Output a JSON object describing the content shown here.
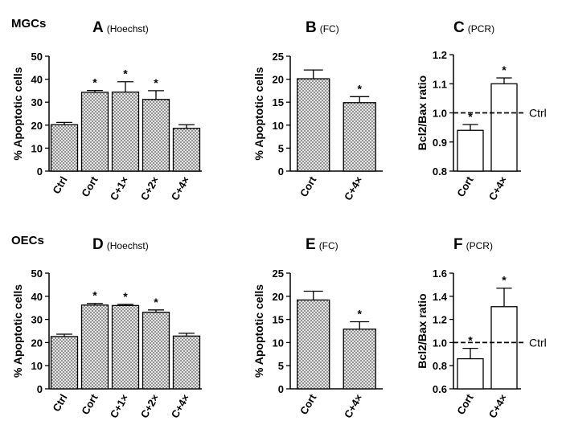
{
  "figure": {
    "rows": [
      {
        "label": "MGCs"
      },
      {
        "label": "OECs"
      }
    ]
  },
  "chart_data": [
    {
      "id": "A",
      "type": "bar",
      "row": 0,
      "letter": "A",
      "method": "(Hoechst)",
      "ylabel": "% Apoptotic cells",
      "ylim": [
        0,
        50
      ],
      "yticks": [
        0,
        10,
        20,
        30,
        40,
        50
      ],
      "categories": [
        "Ctrl",
        "Cort",
        "C+1×",
        "C+2×",
        "C+4×"
      ],
      "values": [
        20.2,
        34.3,
        34.4,
        31.2,
        18.6
      ],
      "errors": [
        1.0,
        0.8,
        4.5,
        3.8,
        1.6
      ],
      "significant": [
        false,
        true,
        true,
        true,
        false
      ],
      "fill": "hatched"
    },
    {
      "id": "B",
      "type": "bar",
      "row": 0,
      "letter": "B",
      "method": "(FC)",
      "ylabel": "% Apoptotic cells",
      "ylim": [
        0,
        25
      ],
      "yticks": [
        0,
        5,
        10,
        15,
        20,
        25
      ],
      "categories": [
        "Cort",
        "C+4×"
      ],
      "values": [
        20.1,
        14.9
      ],
      "errors": [
        1.9,
        1.3
      ],
      "significant": [
        false,
        true
      ],
      "fill": "hatched"
    },
    {
      "id": "C",
      "type": "bar",
      "row": 0,
      "letter": "C",
      "method": "(PCR)",
      "ylabel": "Bcl2/Bax ratio",
      "ylim": [
        0.8,
        1.2
      ],
      "yticks": [
        0.8,
        0.9,
        1.0,
        1.1,
        1.2
      ],
      "categories": [
        "Cort",
        "C+4×"
      ],
      "values": [
        0.94,
        1.1
      ],
      "errors": [
        0.02,
        0.02
      ],
      "significant": [
        true,
        true
      ],
      "fill": "white",
      "reference": {
        "value": 1.0,
        "label": "Ctrl"
      }
    },
    {
      "id": "D",
      "type": "bar",
      "row": 1,
      "letter": "D",
      "method": "(Hoechst)",
      "ylabel": "% Apoptotic cells",
      "ylim": [
        0,
        50
      ],
      "yticks": [
        0,
        10,
        20,
        30,
        40,
        50
      ],
      "categories": [
        "Ctrl",
        "Cort",
        "C+1×",
        "C+2×",
        "C+4×"
      ],
      "values": [
        22.6,
        36.2,
        36.0,
        33.1,
        22.8
      ],
      "errors": [
        1.0,
        0.7,
        0.5,
        1.0,
        1.2
      ],
      "significant": [
        false,
        true,
        true,
        true,
        false
      ],
      "fill": "hatched"
    },
    {
      "id": "E",
      "type": "bar",
      "row": 1,
      "letter": "E",
      "method": "(FC)",
      "ylabel": "% Apoptotic cells",
      "ylim": [
        0,
        25
      ],
      "yticks": [
        0,
        5,
        10,
        15,
        20,
        25
      ],
      "categories": [
        "Cort",
        "C+4×"
      ],
      "values": [
        19.2,
        12.9
      ],
      "errors": [
        1.9,
        1.6
      ],
      "significant": [
        false,
        true
      ],
      "fill": "hatched"
    },
    {
      "id": "F",
      "type": "bar",
      "row": 1,
      "letter": "F",
      "method": "(PCR)",
      "ylabel": "Bcl2/Bax ratio",
      "ylim": [
        0.6,
        1.6
      ],
      "yticks": [
        0.6,
        0.8,
        1.0,
        1.2,
        1.4,
        1.6
      ],
      "categories": [
        "Cort",
        "C+4×"
      ],
      "values": [
        0.86,
        1.31
      ],
      "errors": [
        0.09,
        0.16
      ],
      "significant": [
        true,
        true
      ],
      "fill": "white",
      "reference": {
        "value": 1.0,
        "label": "Ctrl"
      }
    }
  ],
  "star_symbol": "*"
}
